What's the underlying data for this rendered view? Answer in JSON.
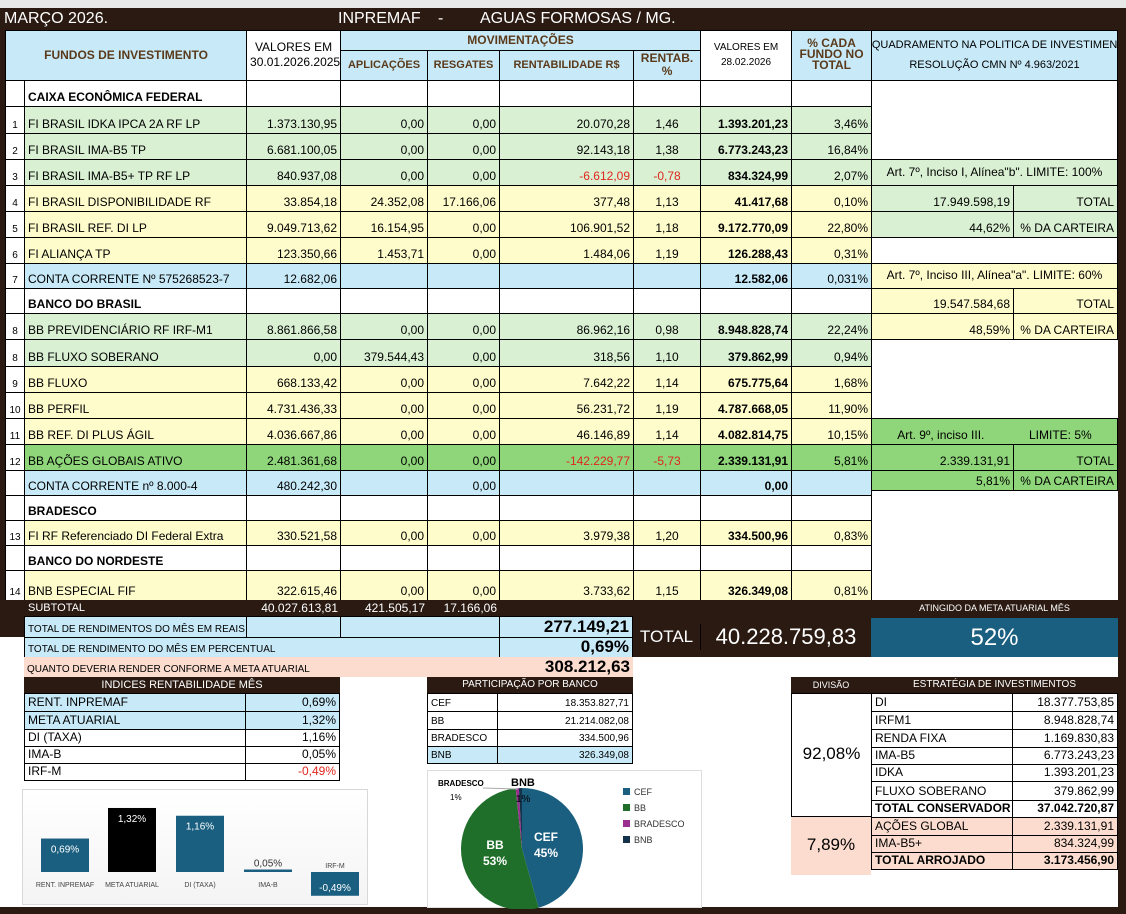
{
  "header": {
    "month": "MARÇO  2026.",
    "org": "INPREMAF",
    "sep": "-",
    "city": "AGUAS FORMOSAS / MG."
  },
  "columns": {
    "funds": "FUNDOS DE INVESTIMENTO",
    "prev_1": "VALORES EM",
    "prev_2": "30.01.2026.2025",
    "movements": "MOVIMENTAÇÕES",
    "apl": "APLICAÇÕES",
    "resg": "RESGATES",
    "rent": "RENTABILIDADE R$",
    "pct": "RENTAB. %",
    "curr_1": "VALORES EM",
    "curr_2": "28.02.2026",
    "share": "% CADA FUNDO NO TOTAL",
    "policy_1": "ENQUADRAMENTO NA POLITICA DE INVESTIMENTO",
    "policy_2": "RESOLUÇÃO CMN Nº  4.963/2021"
  },
  "rows": [
    {
      "section": true,
      "name": "CAIXA ECONÔMICA FEDERAL"
    },
    {
      "num": "1",
      "name": "FI BRASIL IDKA IPCA 2A RF LP",
      "prev": "1.373.130,95",
      "apl": "0,00",
      "resg": "0,00",
      "rent": "20.070,28",
      "pct": "1,46",
      "curr": "1.393.201,23",
      "share": "3,46%",
      "color": "lg"
    },
    {
      "num": "2",
      "name": "FI BRASIL IMA-B5 TP",
      "prev": "6.681.100,05",
      "apl": "0,00",
      "resg": "0,00",
      "rent": "92.143,18",
      "pct": "1,38",
      "curr": "6.773.243,23",
      "share": "16,84%",
      "color": "lg"
    },
    {
      "num": "3",
      "name": "FI BRASIL IMA-B5+ TP RF LP",
      "prev": "840.937,08",
      "apl": "0,00",
      "resg": "0,00",
      "rent": "-6.612,09",
      "pct": "-0,78",
      "curr": "834.324,99",
      "share": "2,07%",
      "color": "lg",
      "neg": true
    },
    {
      "num": "4",
      "name": "FI BRASIL DISPONIBILIDADE RF",
      "prev": "33.854,18",
      "apl": "24.352,08",
      "resg": "17.166,06",
      "rent": "377,48",
      "pct": "1,13",
      "curr": "41.417,68",
      "share": "0,10%",
      "color": "ly"
    },
    {
      "num": "5",
      "name": "FI BRASIL REF. DI LP",
      "prev": "9.049.713,62",
      "apl": "16.154,95",
      "resg": "0,00",
      "rent": "106.901,52",
      "pct": "1,18",
      "curr": "9.172.770,09",
      "share": "22,80%",
      "color": "ly"
    },
    {
      "num": "6",
      "name": "FI ALIANÇA TP",
      "prev": "123.350,66",
      "apl": "1.453,71",
      "resg": "0,00",
      "rent": "1.484,06",
      "pct": "1,19",
      "curr": "126.288,43",
      "share": "0,31%",
      "color": "ly"
    },
    {
      "num": "7",
      "name": "CONTA CORRENTE Nº 575268523-7",
      "prev": "12.682,06",
      "curr": "12.582,06",
      "share": "0,031%",
      "color": "lb"
    },
    {
      "section": true,
      "name": "BANCO DO BRASIL"
    },
    {
      "num": "8",
      "name": "BB PREVIDENCIÁRIO RF IRF-M1",
      "prev": "8.861.866,58",
      "apl": "0,00",
      "resg": "0,00",
      "rent": "86.962,16",
      "pct": "0,98",
      "curr": "8.948.828,74",
      "share": "22,24%",
      "color": "lg"
    },
    {
      "num": "8",
      "name": "BB FLUXO SOBERANO",
      "prev": "0,00",
      "apl": "379.544,43",
      "resg": "0,00",
      "rent": "318,56",
      "pct": "1,10",
      "curr": "379.862,99",
      "share": "0,94%",
      "color": "lg"
    },
    {
      "num": "9",
      "name": "BB FLUXO",
      "prev": "668.133,42",
      "apl": "0,00",
      "resg": "0,00",
      "rent": "7.642,22",
      "pct": "1,14",
      "curr": "675.775,64",
      "share": "1,68%",
      "color": "ly"
    },
    {
      "num": "10",
      "name": "BB PERFIL",
      "prev": "4.731.436,33",
      "apl": "0,00",
      "resg": "0,00",
      "rent": "56.231,72",
      "pct": "1,19",
      "curr": "4.787.668,05",
      "share": "11,90%",
      "color": "ly"
    },
    {
      "num": "11",
      "name": "BB REF. DI PLUS ÁGIL",
      "prev": "4.036.667,86",
      "apl": "0,00",
      "resg": "0,00",
      "rent": "46.146,89",
      "pct": "1,14",
      "curr": "4.082.814,75",
      "share": "10,15%",
      "color": "ly"
    },
    {
      "num": "12",
      "name": "BB AÇÕES GLOBAIS ATIVO",
      "prev": "2.481.361,68",
      "apl": "0,00",
      "resg": "0,00",
      "rent": "-142.229,77",
      "pct": "-5,73",
      "curr": "2.339.131,91",
      "share": "5,81%",
      "color": "gr",
      "neg": true
    },
    {
      "num": "",
      "name": "CONTA CORRENTE   nº 8.000-4",
      "prev": "480.242,30",
      "resg": "0,00",
      "curr": "0,00",
      "color": "lb"
    },
    {
      "section": true,
      "name": "BRADESCO"
    },
    {
      "num": "13",
      "name": "FI RF Referenciado DI Federal Extra",
      "prev": "330.521,58",
      "apl": "0,00",
      "resg": "0,00",
      "rent": "3.979,38",
      "pct": "1,20",
      "curr": "334.500,96",
      "share": "0,83%",
      "color": "ly"
    },
    {
      "section": true,
      "name": "BANCO DO NORDESTE"
    },
    {
      "num": "14",
      "name": "BNB ESPECIAL FIF",
      "prev": "322.615,46",
      "apl": "0,00",
      "resg": "0,00",
      "rent": "3.733,62",
      "pct": "1,15",
      "curr": "326.349,08",
      "share": "0,81%",
      "color": "ly"
    }
  ],
  "policy": {
    "art7_i": {
      "title": "Art. 7º,  Inciso I, Alínea\"b\".  LIMITE: 100%",
      "total": "17.949.598,19",
      "total_label": "TOTAL",
      "pct": "44,62%",
      "pct_label": "% DA CARTEIRA"
    },
    "art7_iii": {
      "title": "Art. 7º,  Inciso III, Alínea\"a\".   LIMITE: 60%",
      "total": "19.547.584,68",
      "total_label": "TOTAL",
      "pct": "48,59%",
      "pct_label": "% DA CARTEIRA"
    },
    "art9": {
      "title": "Art. 9º, inciso III.",
      "limit": "LIMITE: 5%",
      "total": "2.339.131,91",
      "total_label": "TOTAL",
      "pct": "5,81%",
      "pct_label": "% DA CARTEIRA"
    }
  },
  "subtotal": {
    "label": "SUBTOTAL",
    "prev": "40.027.613,81",
    "apl": "421.505,17",
    "resg": "17.166,06"
  },
  "totals": {
    "income_label": "TOTAL DE RENDIMENTOS DO MÊS EM REAIS",
    "income": "277.149,21",
    "pct_label": "TOTAL DE RENDIMENTO DO MÊS EM PERCENTUAL",
    "pct": "0,69%",
    "target_label": "QUANTO DEVERIA RENDER CONFORME A META ATUARIAL",
    "target": "308.212,63",
    "total_label": "TOTAL",
    "total": "40.228.759,83",
    "goal_label": "ATINGIDO DA META ATUARIAL  MÊS",
    "goal": "52%"
  },
  "indices": {
    "title": "INDICES RENTABILIDADE MÊS",
    "items": [
      {
        "label": "RENT.  INPREMAF",
        "value": "0,69%"
      },
      {
        "label": "META ATUARIAL",
        "value": "1,32%"
      },
      {
        "label": "DI (TAXA)",
        "value": "1,16%"
      },
      {
        "label": "IMA-B",
        "value": "0,05%"
      },
      {
        "label": "IRF-M",
        "value": "-0,49%"
      }
    ]
  },
  "banks": {
    "title": "PARTICIPAÇÃO POR BANCO",
    "items": [
      {
        "label": "CEF",
        "value": "18.353.827,71"
      },
      {
        "label": "BB",
        "value": "21.214.082,08"
      },
      {
        "label": "BRADESCO",
        "value": "334.500,96"
      },
      {
        "label": "BNB",
        "value": "326.349,08"
      }
    ]
  },
  "strategy": {
    "division_label": "DIVISÃO",
    "title": "ESTRATÉGIA DE INVESTIMENTOS",
    "conservative_pct": "92,08%",
    "aggressive_pct": "7,89%",
    "items": [
      {
        "label": "DI",
        "value": "18.377.753,85"
      },
      {
        "label": "IRFM1",
        "value": "8.948.828,74"
      },
      {
        "label": "RENDA FIXA",
        "value": "1.169.830,83"
      },
      {
        "label": "IMA-B5",
        "value": "6.773.243,23"
      },
      {
        "label": "IDKA",
        "value": "1.393.201,23"
      },
      {
        "label": "FLUXO SOBERANO",
        "value": "379.862,99"
      },
      {
        "label": "TOTAL CONSERVADOR",
        "value": "37.042.720,87"
      },
      {
        "label": "AÇÕES GLOBAL",
        "value": "2.339.131,91"
      },
      {
        "label": "IMA-B5+",
        "value": "834.324,99"
      },
      {
        "label": "TOTAL ARROJADO",
        "value": "3.173.456,90"
      }
    ]
  },
  "colors": {
    "dark": "#2a1a12",
    "accent": "#1a5f80",
    "negative": "#e0261c",
    "bb": "#1f6f2a",
    "bradesco": "#9b2f8f",
    "bnb": "#14334a"
  },
  "chart_data": [
    {
      "type": "bar",
      "title": "",
      "categories": [
        "RENT. INPREMAF",
        "META ATUARIAL",
        "DI (TAXA)",
        "IMA-B",
        "IRF-M"
      ],
      "values": [
        0.69,
        1.32,
        1.16,
        0.05,
        -0.49
      ],
      "labels": [
        "0,69%",
        "1,32%",
        "1,16%",
        "0,05%",
        "-0,49%"
      ],
      "colors": [
        "#1a5f80",
        "#000000",
        "#1a5f80",
        "#1a5f80",
        "#1a5f80"
      ],
      "grid": false,
      "legend": "none"
    },
    {
      "type": "pie",
      "title": "",
      "categories": [
        "CEF",
        "BB",
        "BRADESCO",
        "BNB"
      ],
      "values": [
        18353827.71,
        21214082.08,
        334500.96,
        326349.08
      ],
      "labels": [
        "45%",
        "53%",
        "1%",
        "1%"
      ],
      "colors": [
        "#1a5f80",
        "#1f6f2a",
        "#9b2f8f",
        "#14334a"
      ],
      "legend": "right"
    }
  ]
}
